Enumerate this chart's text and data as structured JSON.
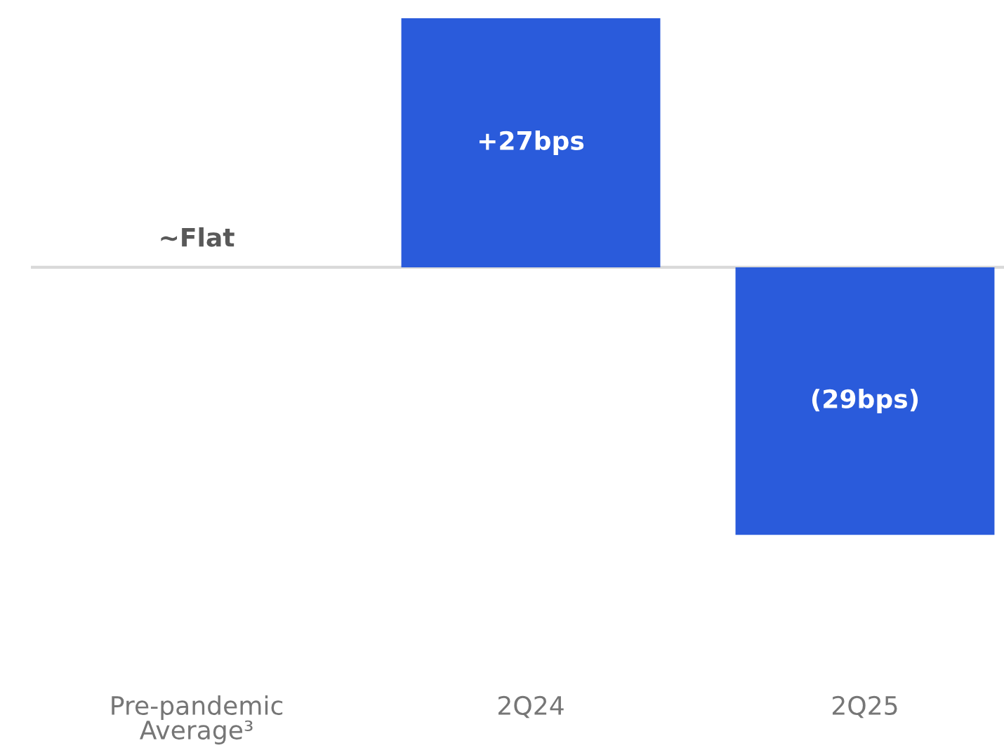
{
  "chart_data": {
    "type": "bar",
    "categories": [
      "Pre-pandemic\nAverage³",
      "2Q24",
      "2Q25"
    ],
    "values": [
      0,
      27,
      -29
    ],
    "value_labels": [
      "~Flat",
      "+27bps",
      "(29bps)"
    ],
    "color": "#2a5bdb",
    "grid": false,
    "legend": false
  }
}
